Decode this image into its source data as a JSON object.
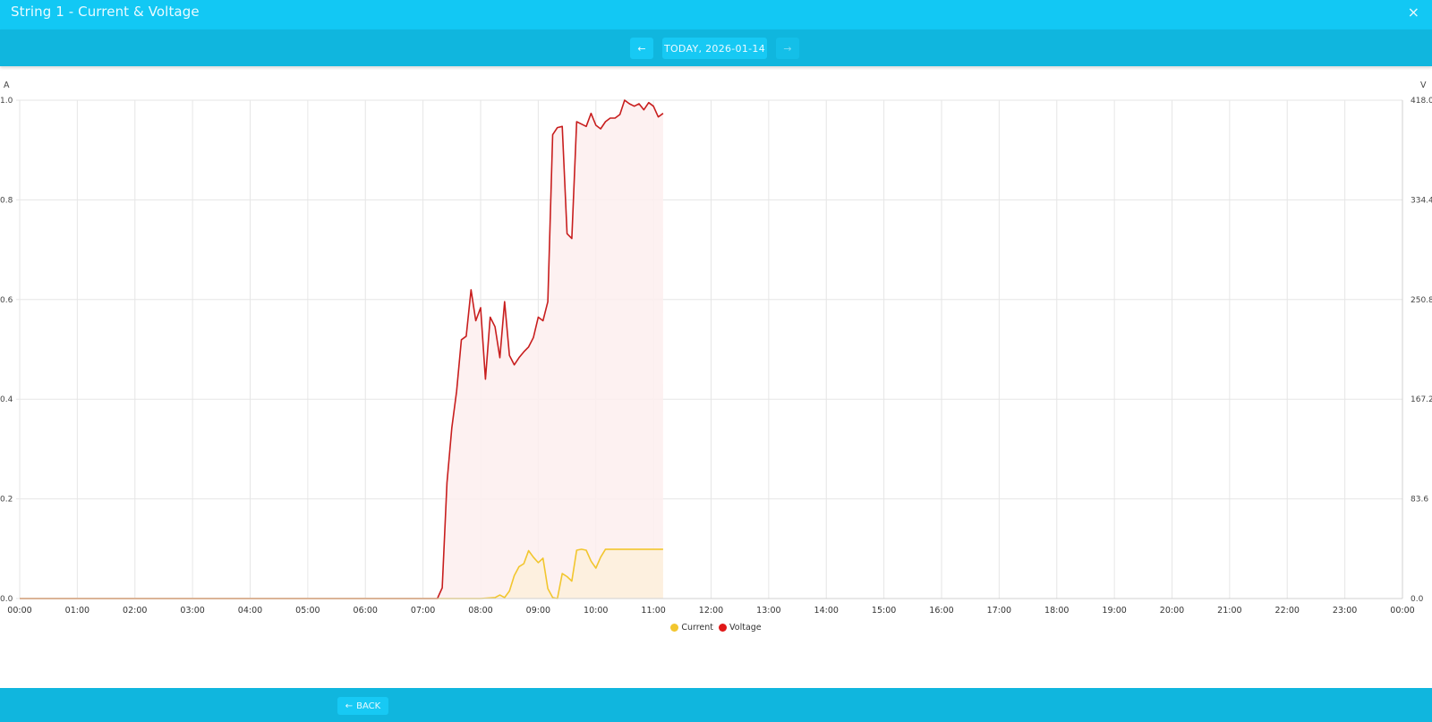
{
  "window": {
    "title": "String 1 - Current & Voltage",
    "close_icon": "×"
  },
  "nav": {
    "prev_icon": "←",
    "date_label": "TODAY, 2026-01-14",
    "next_icon": "→"
  },
  "footer": {
    "back_icon": "←",
    "back_label": "BACK"
  },
  "colors": {
    "header": "#12c8f4",
    "navbar": "#10b6de",
    "current": "#f2c62e",
    "voltage": "#c81e1e",
    "current_fill": "#fdf0dc",
    "voltage_fill": "#fdeeee"
  },
  "chart_data": {
    "type": "line",
    "title": "String 1 - Current & Voltage",
    "xlabel": "",
    "ylabel_left": "A",
    "ylabel_right": "V",
    "xlim": [
      "00:00",
      "24:00"
    ],
    "ylim_left": [
      0,
      1.0
    ],
    "ylim_right": [
      0,
      418.0
    ],
    "grid": true,
    "legend_position": "bottom",
    "x_ticks": [
      "00:00",
      "01:00",
      "02:00",
      "03:00",
      "04:00",
      "05:00",
      "06:00",
      "07:00",
      "08:00",
      "09:00",
      "10:00",
      "11:00",
      "12:00",
      "13:00",
      "14:00",
      "15:00",
      "16:00",
      "17:00",
      "18:00",
      "19:00",
      "20:00",
      "21:00",
      "22:00",
      "23:00",
      "00:00"
    ],
    "y_ticks_left": [
      "0.0",
      "0.2",
      "0.4",
      "0.6",
      "0.8",
      "1.0"
    ],
    "y_ticks_right": [
      "0.0",
      "83.6",
      "167.2",
      "250.8",
      "334.4",
      "418.0"
    ],
    "series": [
      {
        "name": "Current",
        "axis": "left",
        "unit": "A",
        "color": "#f2c62e",
        "x": [
          "00:00",
          "07:15",
          "08:00",
          "08:15",
          "08:20",
          "08:25",
          "08:30",
          "08:35",
          "08:40",
          "08:45",
          "08:50",
          "08:55",
          "09:00",
          "09:05",
          "09:10",
          "09:15",
          "09:20",
          "09:25",
          "09:30",
          "09:35",
          "09:40",
          "09:45",
          "09:50",
          "09:55",
          "10:00",
          "10:05",
          "10:10",
          "10:15",
          "10:20",
          "11:10"
        ],
        "values": [
          0,
          0,
          0,
          0.002,
          0.007,
          0.002,
          0.015,
          0.046,
          0.064,
          0.07,
          0.096,
          0.083,
          0.072,
          0.081,
          0.02,
          0.002,
          0,
          0.05,
          0.044,
          0.035,
          0.097,
          0.099,
          0.097,
          0.075,
          0.061,
          0.083,
          0.099,
          0.099,
          0.099,
          0.099
        ]
      },
      {
        "name": "Voltage",
        "axis": "right",
        "unit": "V",
        "color": "#c81e1e",
        "x": [
          "00:00",
          "07:15",
          "07:20",
          "07:25",
          "07:30",
          "07:35",
          "07:40",
          "07:45",
          "07:50",
          "07:55",
          "08:00",
          "08:05",
          "08:10",
          "08:15",
          "08:20",
          "08:25",
          "08:30",
          "08:35",
          "08:40",
          "08:45",
          "08:50",
          "08:55",
          "09:00",
          "09:05",
          "09:10",
          "09:15",
          "09:20",
          "09:25",
          "09:30",
          "09:35",
          "09:40",
          "09:45",
          "09:50",
          "09:55",
          "10:00",
          "10:05",
          "10:10",
          "10:15",
          "10:20",
          "10:25",
          "10:30",
          "10:35",
          "10:40",
          "10:45",
          "10:50",
          "10:55",
          "11:00",
          "11:05",
          "11:10"
        ],
        "values": [
          0,
          0,
          9,
          97,
          143,
          174,
          217,
          220,
          259,
          233,
          244,
          184,
          236,
          228,
          202,
          249,
          204,
          196,
          202,
          207,
          211,
          219,
          236,
          233,
          249,
          389,
          395,
          396,
          306,
          302,
          400,
          398,
          396,
          407,
          397,
          394,
          400,
          403,
          403,
          406,
          418,
          415,
          413,
          415,
          410,
          416,
          413,
          404,
          407
        ]
      }
    ]
  },
  "legend": {
    "items": [
      {
        "label": "Current",
        "color": "#f2c62e"
      },
      {
        "label": "Voltage",
        "color": "#e01818"
      }
    ]
  }
}
